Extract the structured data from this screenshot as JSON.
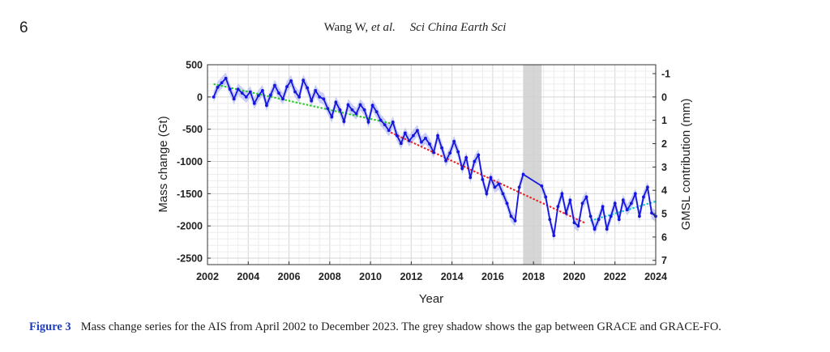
{
  "header": {
    "page_number": "6",
    "authors": "Wang W,",
    "et_al": "et al.",
    "journal": "Sci China Earth Sci"
  },
  "caption": {
    "label": "Figure 3",
    "text": "Mass change series for the AIS from April 2002 to December 2023. The grey shadow shows the gap between GRACE and GRACE-FO."
  },
  "colors": {
    "series": "#1515e0",
    "band": "#b9bff2",
    "trend_grace_early": "#22cc22",
    "trend_grace_late": "#ee1c1c",
    "trend_grace_fo": "#00c8d8",
    "gap_shadow": "#cfcfcf"
  },
  "chart_data": {
    "type": "line",
    "xlabel": "Year",
    "ylabel": "Mass change (Gt)",
    "y2label": "GMSL contribution (mm)",
    "xlim": [
      2002,
      2024
    ],
    "ylim": [
      -2600,
      500
    ],
    "xticks": [
      2002,
      2004,
      2006,
      2008,
      2010,
      2012,
      2014,
      2016,
      2018,
      2020,
      2022,
      2024
    ],
    "yticks": [
      500,
      0,
      -500,
      -1000,
      -1500,
      -2000,
      -2500
    ],
    "y2ticks": [
      -1,
      0,
      1,
      2,
      3,
      4,
      5,
      6,
      7
    ],
    "y2_gt_per_mm": -362,
    "grid": true,
    "gap": {
      "start": 2017.5,
      "end": 2018.4
    },
    "uncertainty_gt": 90,
    "series": [
      {
        "name": "GRACE",
        "x": [
          2002.3,
          2002.5,
          2002.7,
          2002.9,
          2003.1,
          2003.3,
          2003.5,
          2003.7,
          2003.9,
          2004.1,
          2004.3,
          2004.5,
          2004.7,
          2004.9,
          2005.1,
          2005.3,
          2005.5,
          2005.7,
          2005.9,
          2006.1,
          2006.3,
          2006.5,
          2006.7,
          2006.9,
          2007.1,
          2007.3,
          2007.5,
          2007.7,
          2007.9,
          2008.1,
          2008.3,
          2008.5,
          2008.7,
          2008.9,
          2009.1,
          2009.3,
          2009.5,
          2009.7,
          2009.9,
          2010.1,
          2010.3,
          2010.5,
          2010.7,
          2010.9,
          2011.1,
          2011.3,
          2011.5,
          2011.7,
          2011.9,
          2012.1,
          2012.3,
          2012.5,
          2012.7,
          2012.9,
          2013.1,
          2013.3,
          2013.5,
          2013.7,
          2013.9,
          2014.1,
          2014.3,
          2014.5,
          2014.7,
          2014.9,
          2015.1,
          2015.3,
          2015.5,
          2015.7,
          2015.9,
          2016.1,
          2016.3,
          2016.5,
          2016.7,
          2016.9,
          2017.1,
          2017.3,
          2017.5
        ],
        "values": [
          0,
          150,
          220,
          290,
          120,
          -30,
          120,
          60,
          0,
          80,
          -100,
          20,
          100,
          -130,
          30,
          180,
          60,
          -30,
          160,
          250,
          80,
          0,
          260,
          140,
          -60,
          100,
          0,
          -30,
          -180,
          -310,
          -80,
          -200,
          -380,
          -120,
          -200,
          -260,
          -120,
          -200,
          -390,
          -130,
          -230,
          -360,
          -430,
          -520,
          -390,
          -600,
          -720,
          -560,
          -680,
          -600,
          -520,
          -700,
          -640,
          -730,
          -860,
          -600,
          -790,
          -990,
          -870,
          -690,
          -850,
          -1110,
          -940,
          -1250,
          -1000,
          -900,
          -1280,
          -1500,
          -1250,
          -1400,
          -1350,
          -1500,
          -1650,
          -1850,
          -1920,
          -1400,
          -1200
        ]
      },
      {
        "name": "GRACE-FO",
        "x": [
          2018.4,
          2018.6,
          2018.8,
          2019.0,
          2019.2,
          2019.4,
          2019.6,
          2019.8,
          2020.0,
          2020.2,
          2020.4,
          2020.6,
          2020.8,
          2021.0,
          2021.2,
          2021.4,
          2021.6,
          2021.8,
          2022.0,
          2022.2,
          2022.4,
          2022.6,
          2022.8,
          2023.0,
          2023.2,
          2023.4,
          2023.6,
          2023.8,
          2024.0
        ],
        "values": [
          -1380,
          -1550,
          -1900,
          -2150,
          -1700,
          -1500,
          -1800,
          -1600,
          -1950,
          -2000,
          -1650,
          -1550,
          -1850,
          -2050,
          -1900,
          -1700,
          -2050,
          -1850,
          -1650,
          -1900,
          -1600,
          -1750,
          -1650,
          -1500,
          -1850,
          -1550,
          -1400,
          -1800,
          -1850
        ]
      }
    ],
    "trends": [
      {
        "name": "trend-2002-2011",
        "x": [
          2002.3,
          2011.0
        ],
        "values": [
          200,
          -410
        ]
      },
      {
        "name": "trend-2011-2020",
        "x": [
          2011.0,
          2020.5
        ],
        "values": [
          -550,
          -1950
        ]
      },
      {
        "name": "trend-2020-2024",
        "x": [
          2020.8,
          2024.0
        ],
        "values": [
          -1920,
          -1620
        ]
      }
    ]
  }
}
